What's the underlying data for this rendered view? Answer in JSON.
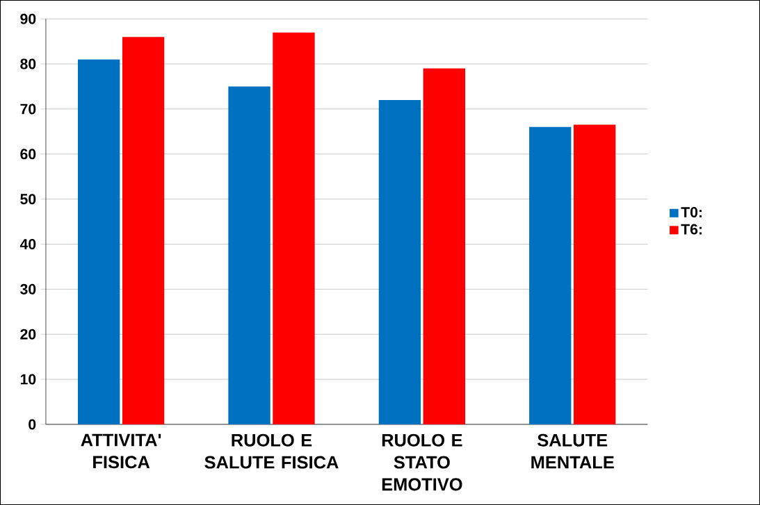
{
  "chart_data": {
    "type": "bar",
    "categories": [
      "ATTIVITA' FISICA",
      "RUOLO E SALUTE FISICA",
      "RUOLO E STATO EMOTIVO",
      "SALUTE MENTALE"
    ],
    "series": [
      {
        "name": "T0:",
        "color": "#0070c0",
        "values": [
          81,
          75,
          72,
          66
        ]
      },
      {
        "name": "T6:",
        "color": "#ff0000",
        "values": [
          86,
          87,
          79,
          66.5
        ]
      }
    ],
    "ylim": [
      0,
      90
    ],
    "yticks": [
      0,
      10,
      20,
      30,
      40,
      50,
      60,
      70,
      80,
      90
    ],
    "grid": "y",
    "legend": "right"
  }
}
